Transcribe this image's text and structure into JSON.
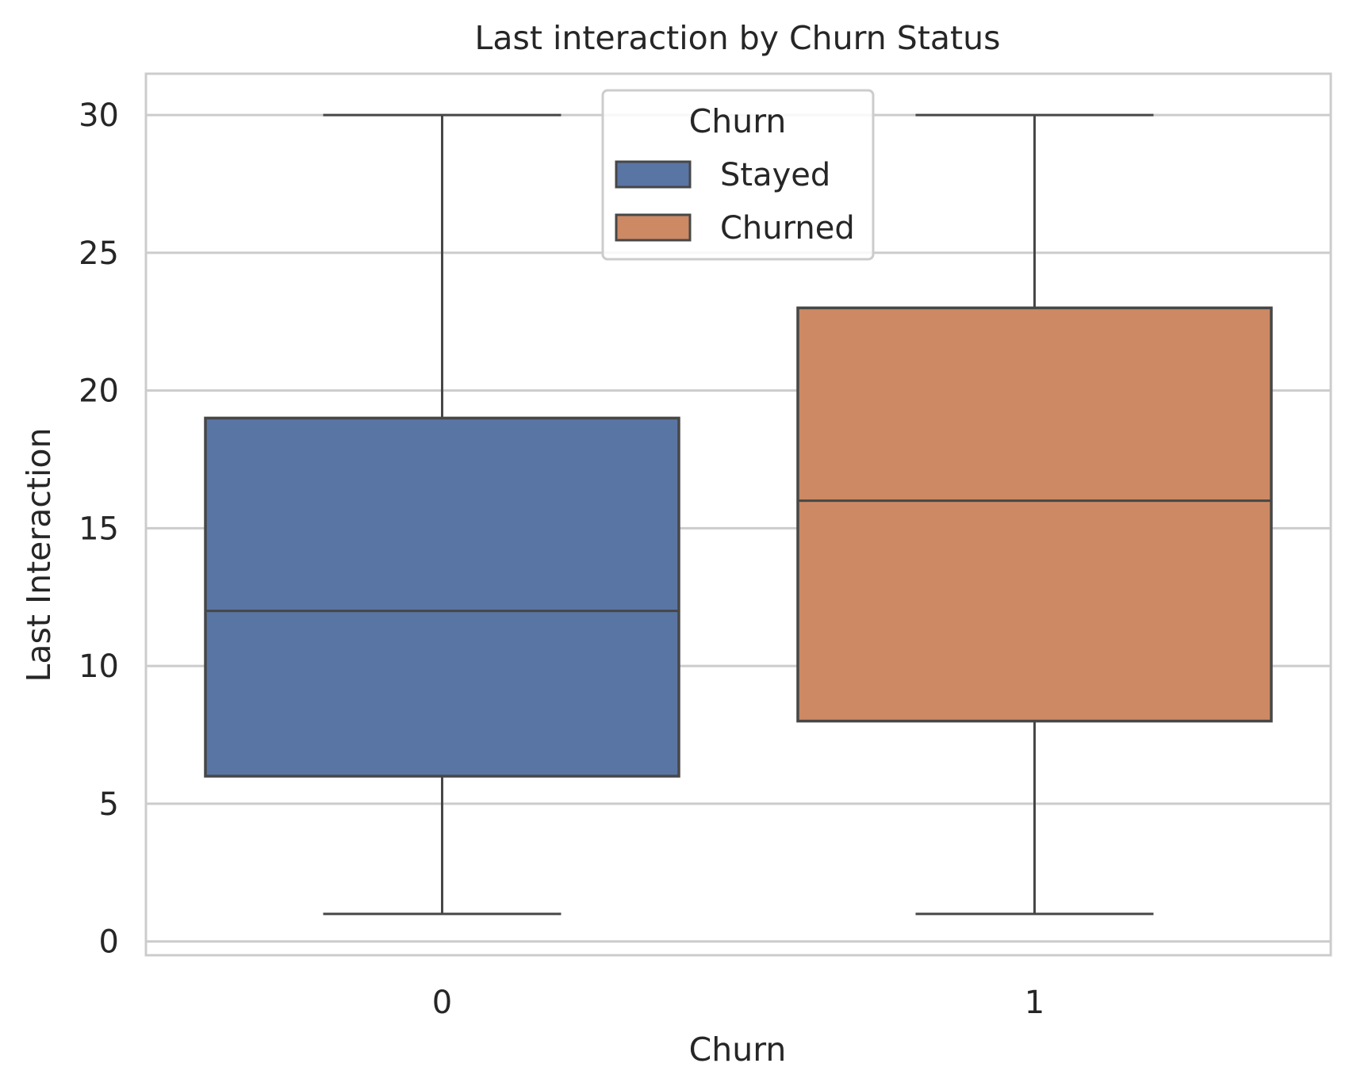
{
  "chart_data": {
    "type": "box",
    "title": "Last interaction by Churn Status",
    "xlabel": "Churn",
    "ylabel": "Last Interaction",
    "categories": [
      "0",
      "1"
    ],
    "ylim": [
      -0.5,
      31.5
    ],
    "yticks": [
      0,
      5,
      10,
      15,
      20,
      25,
      30
    ],
    "grid": true,
    "legend": {
      "title": "Churn",
      "position": "top-center",
      "entries": [
        "Stayed",
        "Churned"
      ]
    },
    "series": [
      {
        "category": "0",
        "legend": "Stayed",
        "color": "#5975a4",
        "min": 1,
        "q1": 6,
        "median": 12,
        "q3": 19,
        "max": 30
      },
      {
        "category": "1",
        "legend": "Churned",
        "color": "#cc8963",
        "min": 1,
        "q1": 8,
        "median": 16,
        "q3": 23,
        "max": 30
      }
    ]
  }
}
